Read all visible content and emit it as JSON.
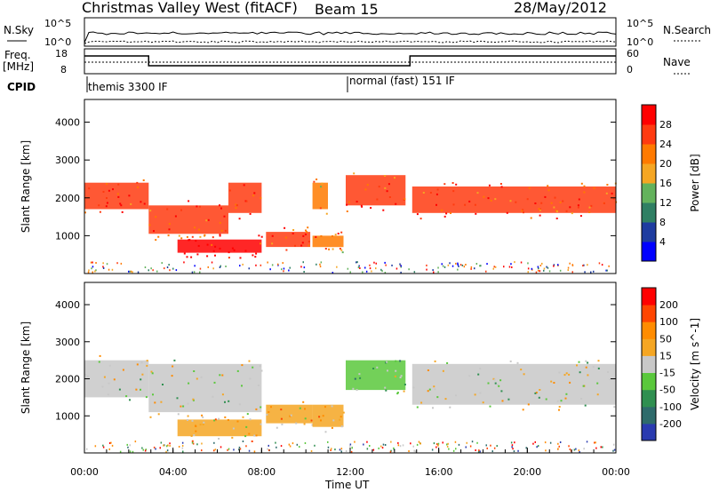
{
  "header": {
    "station": "Christmas Valley West (fitACF)",
    "beam": "Beam 15",
    "date": "28/May/2012"
  },
  "status_panel": {
    "nsky_label": "N.Sky",
    "nsearch_label": "N.Search",
    "sky_ticks": [
      "10^5",
      "10^0"
    ],
    "search_ticks": [
      "10^5",
      "10^0"
    ],
    "freq_label": "Freq.",
    "freq_unit": "[MHz]",
    "freq_ticks": [
      "18",
      "8"
    ],
    "nave_label": "Nave",
    "nave_ticks": [
      "60",
      "0"
    ],
    "cpid_label": "CPID",
    "cpid_entries": [
      {
        "label": "themis 3300 IF",
        "start_hour": 0.1
      },
      {
        "label": "normal (fast) 151 IF",
        "start_hour": 11.9
      }
    ]
  },
  "chart_data": [
    {
      "type": "heatmap",
      "name": "power-panel",
      "ylabel": "Slant Range [km]",
      "xlabel": "",
      "xlim": [
        0,
        24
      ],
      "ylim": [
        0,
        4600
      ],
      "y_ticks": [
        1000,
        2000,
        3000,
        4000
      ],
      "colorbar_label": "Power [dB]",
      "colorbar_ticks": [
        "28",
        "24",
        "20",
        "16",
        "12",
        "8",
        "4"
      ],
      "colors": [
        "#0000ff",
        "#1e3ca0",
        "#2f7f63",
        "#63b25c",
        "#f5a623",
        "#ff7a00",
        "#ff3b10",
        "#ff0000"
      ],
      "bands": [
        {
          "x": [
            0.0,
            2.9
          ],
          "y": [
            1700,
            2400
          ],
          "level": 6
        },
        {
          "x": [
            2.9,
            6.5
          ],
          "y": [
            1050,
            1800
          ],
          "level": 6
        },
        {
          "x": [
            6.5,
            8.0
          ],
          "y": [
            1600,
            2400
          ],
          "level": 6
        },
        {
          "x": [
            4.2,
            8.0
          ],
          "y": [
            550,
            900
          ],
          "level": 7
        },
        {
          "x": [
            8.2,
            10.2
          ],
          "y": [
            700,
            1100
          ],
          "level": 6
        },
        {
          "x": [
            10.3,
            11.7
          ],
          "y": [
            700,
            1000
          ],
          "level": 5
        },
        {
          "x": [
            10.3,
            11.0
          ],
          "y": [
            1700,
            2400
          ],
          "level": 5
        },
        {
          "x": [
            11.8,
            14.5
          ],
          "y": [
            1800,
            2600
          ],
          "level": 6
        },
        {
          "x": [
            14.8,
            24.0
          ],
          "y": [
            1600,
            2300
          ],
          "level": 6
        }
      ]
    },
    {
      "type": "heatmap",
      "name": "velocity-panel",
      "ylabel": "Slant Range [km]",
      "xlabel": "Time UT",
      "xlim": [
        0,
        24
      ],
      "ylim": [
        0,
        4600
      ],
      "x_tick_labels": [
        "00:00",
        "04:00",
        "08:00",
        "12:00",
        "16:00",
        "20:00",
        "00:00"
      ],
      "x_ticks": [
        0,
        4,
        8,
        12,
        16,
        20,
        24
      ],
      "y_ticks": [
        1000,
        2000,
        3000,
        4000
      ],
      "colorbar_label": "Velocity [m s^-1]",
      "colorbar_ticks": [
        "200",
        "100",
        "50",
        "15",
        "-15",
        "-50",
        "-100",
        "-200"
      ],
      "colors": [
        "#2a3bb0",
        "#2e6b6b",
        "#2f8f50",
        "#5ac83c",
        "#c8c8c8",
        "#f5a623",
        "#ff8c00",
        "#ff4500",
        "#ff0000"
      ],
      "bands": [
        {
          "x": [
            0.0,
            2.9
          ],
          "y": [
            1500,
            2500
          ],
          "level": 4
        },
        {
          "x": [
            2.9,
            8.0
          ],
          "y": [
            1100,
            2400
          ],
          "level": 4
        },
        {
          "x": [
            4.2,
            8.0
          ],
          "y": [
            450,
            900
          ],
          "level": 5
        },
        {
          "x": [
            8.2,
            10.3
          ],
          "y": [
            800,
            1300
          ],
          "level": 5
        },
        {
          "x": [
            10.3,
            11.7
          ],
          "y": [
            700,
            1300
          ],
          "level": 5
        },
        {
          "x": [
            11.8,
            14.5
          ],
          "y": [
            1700,
            2500
          ],
          "level": 3
        },
        {
          "x": [
            14.8,
            24.0
          ],
          "y": [
            1300,
            2400
          ],
          "level": 4
        }
      ]
    }
  ]
}
